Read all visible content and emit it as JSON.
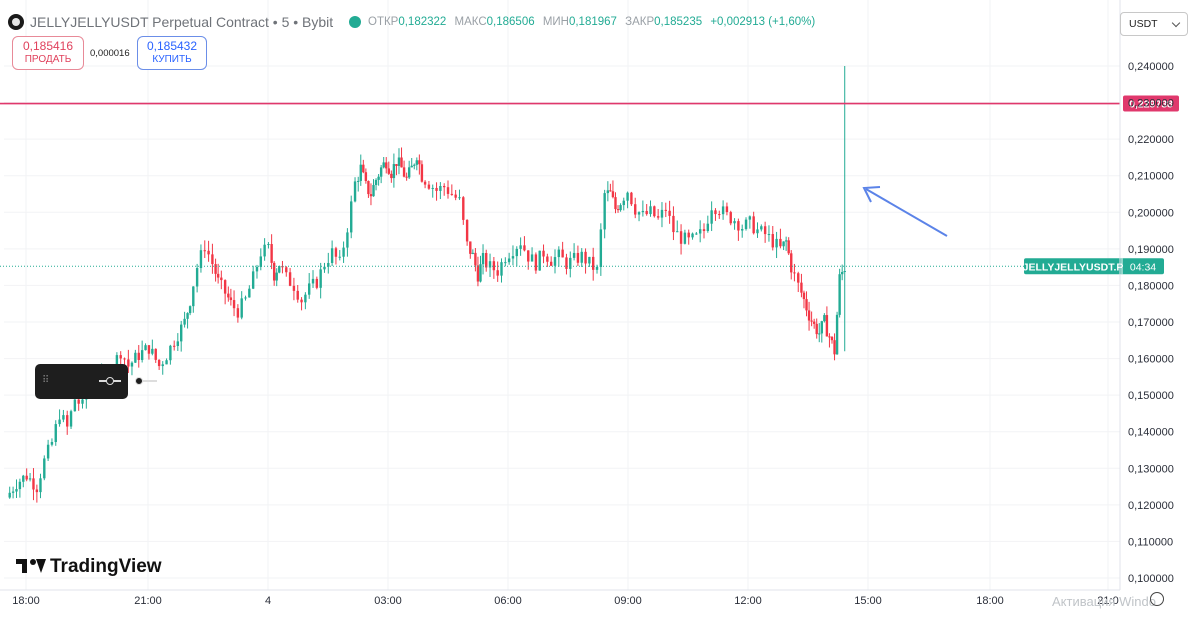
{
  "header": {
    "title": "JELLYJELLYUSDT Perpetual Contract • 5 • Bybit",
    "ohlc": [
      {
        "label": "ОТКР",
        "value": "0,182322"
      },
      {
        "label": "МАКС",
        "value": "0,186506"
      },
      {
        "label": "МИН",
        "value": "0,181967"
      },
      {
        "label": "ЗАКР",
        "value": "0,185235"
      }
    ],
    "change": "+0,002913 (+1,60%)"
  },
  "trade": {
    "sell_price": "0,185416",
    "sell_label": "ПРОДАТЬ",
    "spread": "0,000016",
    "buy_price": "0,185432",
    "buy_label": "КУПИТЬ"
  },
  "currency_selector": "USDT",
  "watermark": "Активация Windo",
  "brand": "TradingView",
  "colors": {
    "up": "#22ab94",
    "down": "#f23645",
    "hline": "#e0386c",
    "arrow": "#5b83e8"
  },
  "chart_data": {
    "type": "candlestick",
    "symbol": "JELLYJELLYUSDT",
    "interval": "5",
    "exchange": "Bybit",
    "x_ticks": [
      "18:00",
      "21:00",
      "4",
      "03:00",
      "06:00",
      "09:00",
      "12:00",
      "15:00",
      "18:00",
      "21:0"
    ],
    "y_ticks": [
      "0,240000",
      "0,230000",
      "0,220000",
      "0,210000",
      "0,200000",
      "0,190000",
      "0,180000",
      "0,170000",
      "0,160000",
      "0,150000",
      "0,140000",
      "0,130000",
      "0,120000",
      "0,110000",
      "0,100000"
    ],
    "ylim": [
      0.1,
      0.24
    ],
    "horizontal_line": {
      "value": 0.229738,
      "label": "0,229738"
    },
    "last_price_label": {
      "symbol": "JELLYJELLYUSDT.P",
      "countdown": "04:34",
      "value": 0.185235
    },
    "annotation": "arrow pointing at last spike",
    "price_path": [
      [
        0,
        0.122
      ],
      [
        8,
        0.126
      ],
      [
        16,
        0.128
      ],
      [
        24,
        0.125
      ],
      [
        30,
        0.132
      ],
      [
        36,
        0.137
      ],
      [
        42,
        0.145
      ],
      [
        48,
        0.141
      ],
      [
        54,
        0.149
      ],
      [
        60,
        0.147
      ],
      [
        66,
        0.153
      ],
      [
        72,
        0.156
      ],
      [
        78,
        0.152
      ],
      [
        84,
        0.158
      ],
      [
        90,
        0.162
      ],
      [
        96,
        0.158
      ],
      [
        104,
        0.161
      ],
      [
        112,
        0.163
      ],
      [
        120,
        0.158
      ],
      [
        126,
        0.161
      ],
      [
        132,
        0.165
      ],
      [
        140,
        0.17
      ],
      [
        144,
        0.176
      ],
      [
        150,
        0.185
      ],
      [
        156,
        0.191
      ],
      [
        162,
        0.186
      ],
      [
        166,
        0.181
      ],
      [
        172,
        0.178
      ],
      [
        176,
        0.175
      ],
      [
        182,
        0.173
      ],
      [
        188,
        0.176
      ],
      [
        194,
        0.182
      ],
      [
        200,
        0.189
      ],
      [
        206,
        0.19
      ],
      [
        210,
        0.183
      ],
      [
        214,
        0.186
      ],
      [
        220,
        0.182
      ],
      [
        226,
        0.18
      ],
      [
        232,
        0.176
      ],
      [
        238,
        0.179
      ],
      [
        244,
        0.181
      ],
      [
        250,
        0.186
      ],
      [
        256,
        0.189
      ],
      [
        262,
        0.186
      ],
      [
        268,
        0.196
      ],
      [
        274,
        0.208
      ],
      [
        278,
        0.212
      ],
      [
        282,
        0.207
      ],
      [
        286,
        0.205
      ],
      [
        290,
        0.209
      ],
      [
        294,
        0.212
      ],
      [
        298,
        0.214
      ],
      [
        302,
        0.211
      ],
      [
        306,
        0.214
      ],
      [
        310,
        0.212
      ],
      [
        314,
        0.209
      ],
      [
        318,
        0.212
      ],
      [
        322,
        0.216
      ],
      [
        326,
        0.21
      ],
      [
        332,
        0.208
      ],
      [
        338,
        0.206
      ],
      [
        344,
        0.207
      ],
      [
        350,
        0.205
      ],
      [
        356,
        0.203
      ],
      [
        362,
        0.191
      ],
      [
        366,
        0.188
      ],
      [
        370,
        0.183
      ],
      [
        374,
        0.187
      ],
      [
        380,
        0.185
      ],
      [
        386,
        0.184
      ],
      [
        392,
        0.188
      ],
      [
        398,
        0.19
      ],
      [
        404,
        0.192
      ],
      [
        410,
        0.188
      ],
      [
        416,
        0.186
      ],
      [
        422,
        0.189
      ],
      [
        428,
        0.187
      ],
      [
        434,
        0.188
      ],
      [
        440,
        0.186
      ],
      [
        446,
        0.187
      ],
      [
        452,
        0.188
      ],
      [
        458,
        0.186
      ],
      [
        464,
        0.184
      ],
      [
        470,
        0.205
      ],
      [
        474,
        0.205
      ],
      [
        478,
        0.201
      ],
      [
        482,
        0.203
      ],
      [
        488,
        0.206
      ],
      [
        494,
        0.201
      ],
      [
        500,
        0.199
      ],
      [
        506,
        0.2
      ],
      [
        512,
        0.198
      ],
      [
        518,
        0.201
      ],
      [
        524,
        0.195
      ],
      [
        530,
        0.193
      ],
      [
        536,
        0.192
      ],
      [
        542,
        0.193
      ],
      [
        548,
        0.195
      ],
      [
        554,
        0.202
      ],
      [
        560,
        0.201
      ],
      [
        566,
        0.199
      ],
      [
        572,
        0.198
      ],
      [
        578,
        0.196
      ],
      [
        584,
        0.197
      ],
      [
        590,
        0.195
      ],
      [
        596,
        0.194
      ],
      [
        602,
        0.192
      ],
      [
        608,
        0.19
      ],
      [
        612,
        0.192
      ],
      [
        616,
        0.185
      ],
      [
        622,
        0.18
      ],
      [
        626,
        0.176
      ],
      [
        630,
        0.172
      ],
      [
        634,
        0.169
      ],
      [
        638,
        0.167
      ],
      [
        642,
        0.17
      ],
      [
        646,
        0.166
      ],
      [
        650,
        0.162
      ],
      [
        654,
        0.182
      ],
      [
        658,
        0.185
      ]
    ],
    "spike": {
      "index": 654,
      "high": 0.24,
      "low": 0.162
    }
  }
}
